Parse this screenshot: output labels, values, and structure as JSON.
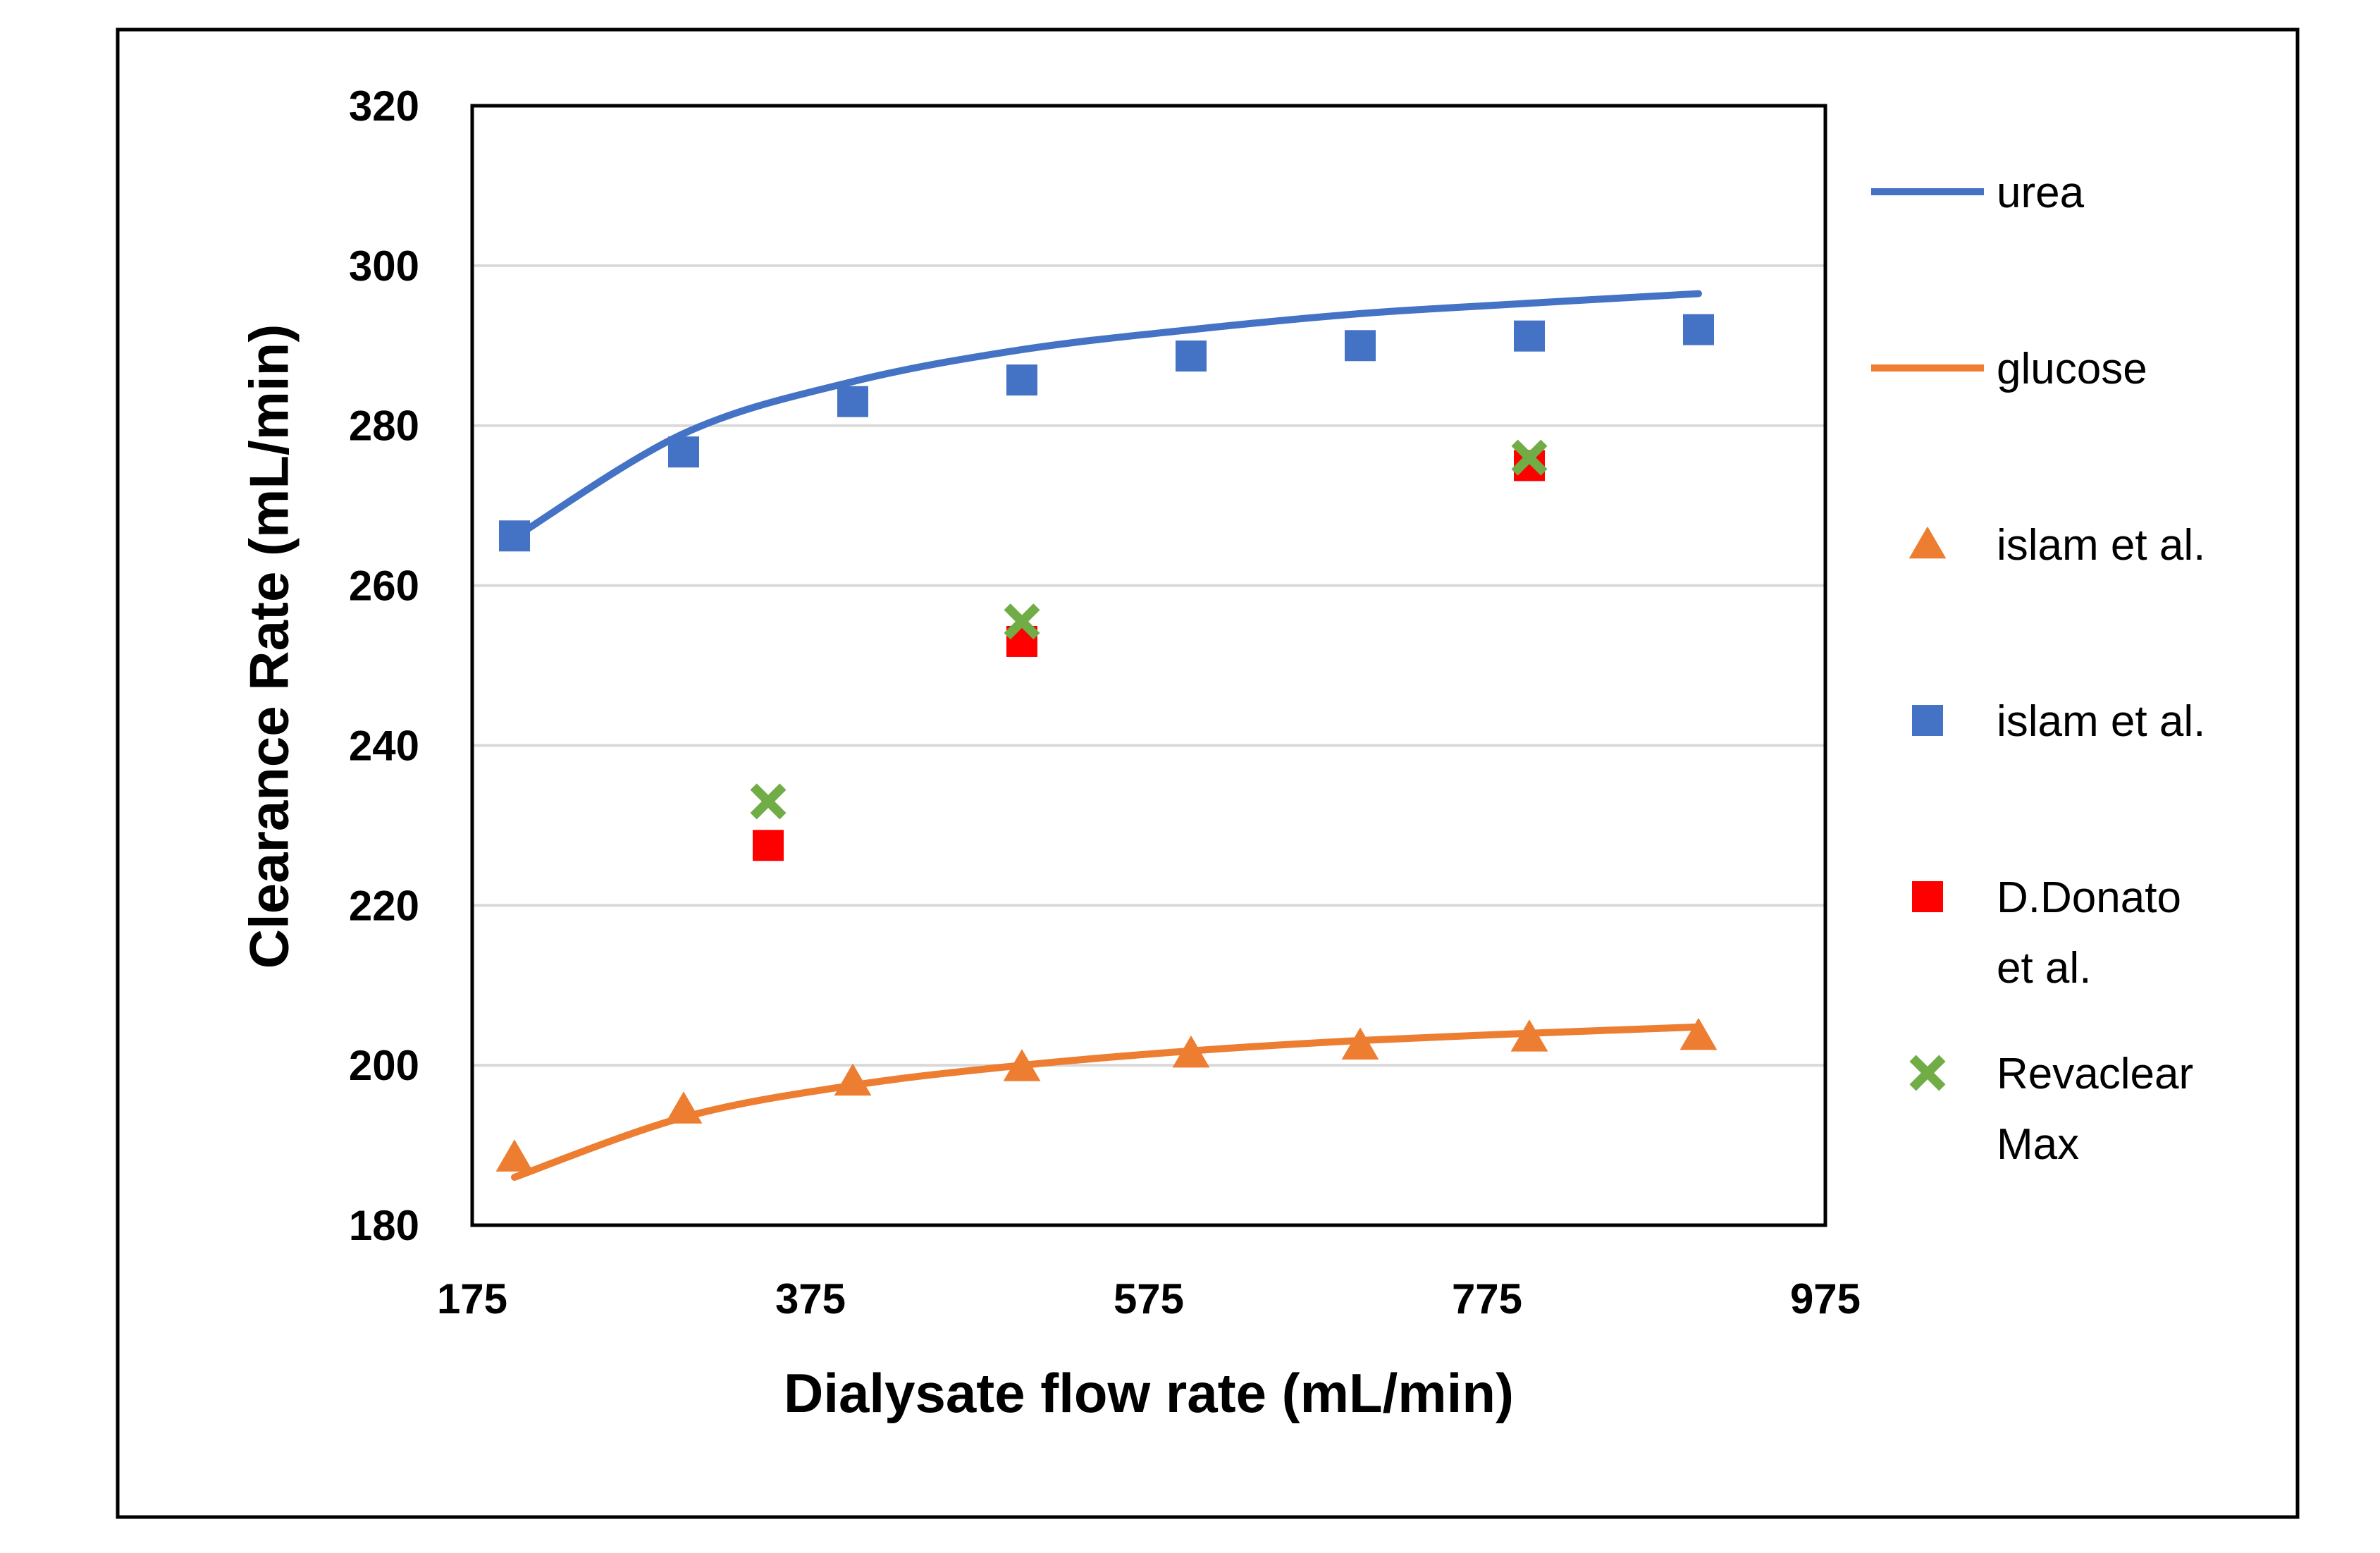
{
  "chart_data": {
    "type": "scatter",
    "title": "",
    "xlabel": "Dialysate flow rate (mL/min)",
    "ylabel": "Clearance Rate (mL/min)",
    "xlim": [
      175,
      975
    ],
    "ylim": [
      180,
      320
    ],
    "xticks": [
      "175",
      "375",
      "575",
      "775",
      "975"
    ],
    "yticks": [
      "180",
      "200",
      "220",
      "240",
      "260",
      "280",
      "300",
      "320"
    ],
    "grid": "horizontal",
    "legend_position": "right",
    "series": [
      {
        "name": "urea",
        "kind": "line",
        "color": "#4472C4",
        "x": [
          200,
          300,
          400,
          500,
          600,
          700,
          800,
          900
        ],
        "y": [
          266,
          279,
          285.5,
          289.5,
          292,
          294,
          295.3,
          296.5
        ]
      },
      {
        "name": "glucose",
        "kind": "line",
        "color": "#ED7D31",
        "x": [
          200,
          300,
          400,
          500,
          600,
          700,
          800,
          900
        ],
        "y": [
          186,
          193.5,
          197.5,
          200,
          201.8,
          203.1,
          204,
          204.8
        ]
      },
      {
        "name": "islam et al.",
        "kind": "marker",
        "marker": "triangle",
        "color": "#ED7D31",
        "x": [
          200,
          300,
          400,
          500,
          600,
          700,
          800,
          900
        ],
        "y": [
          188.5,
          194.5,
          198,
          199.8,
          201.5,
          202.5,
          203.5,
          203.7
        ]
      },
      {
        "name": "islam et al.",
        "kind": "marker",
        "marker": "square",
        "color": "#4472C4",
        "x": [
          200,
          300,
          400,
          500,
          600,
          700,
          800,
          900
        ],
        "y": [
          266.2,
          276.7,
          283,
          285.7,
          288.7,
          290,
          291.2,
          292
        ]
      },
      {
        "name": "D.Donato et al.",
        "legend_lines": [
          "D.Donato",
          "et al."
        ],
        "kind": "marker",
        "marker": "square",
        "color": "#FF0000",
        "x": [
          350,
          500,
          800
        ],
        "y": [
          227.5,
          253,
          275
        ]
      },
      {
        "name": "Revaclear Max",
        "legend_lines": [
          "Revaclear",
          "Max"
        ],
        "kind": "marker",
        "marker": "x",
        "color": "#70AD47",
        "x": [
          350,
          500,
          800
        ],
        "y": [
          233,
          255.5,
          276
        ]
      }
    ]
  }
}
